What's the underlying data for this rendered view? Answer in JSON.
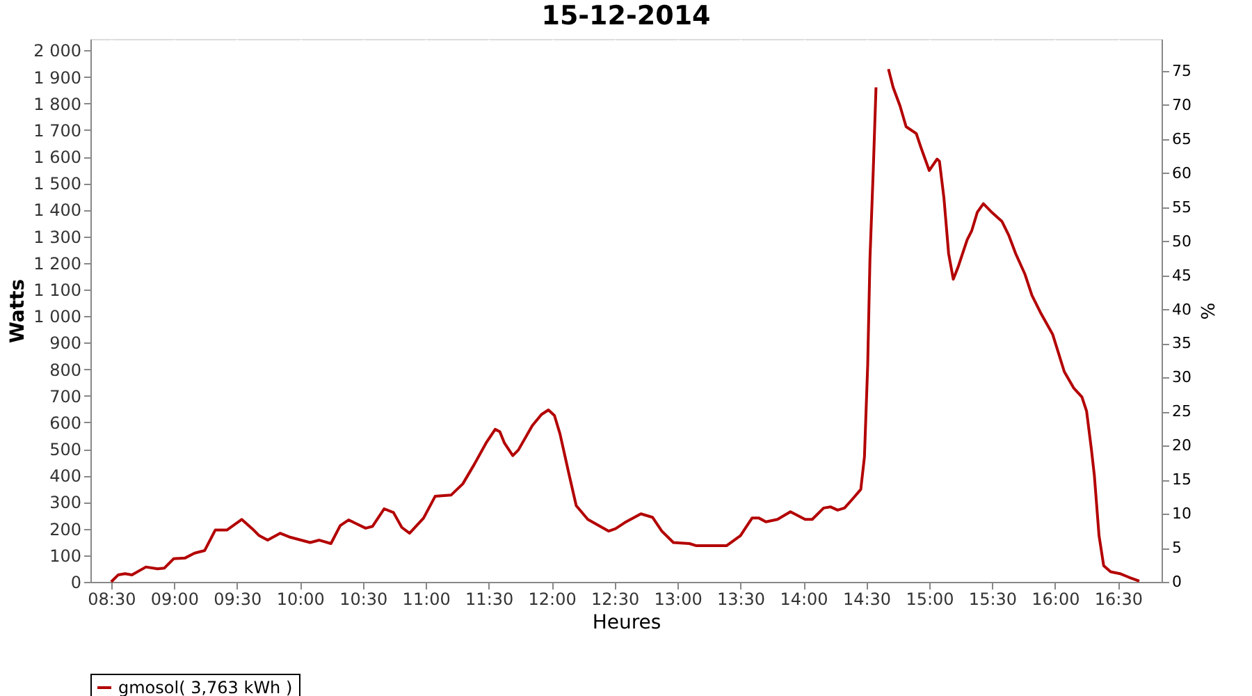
{
  "chart_data": {
    "type": "line",
    "title": "15-12-2014",
    "xlabel": "Heures",
    "ylabel": "Watts",
    "y2label": "%",
    "x": [
      8.5,
      8.555,
      8.61,
      8.665,
      8.776,
      8.868,
      8.923,
      8.996,
      9.088,
      9.162,
      9.243,
      9.327,
      9.419,
      9.537,
      9.621,
      9.676,
      9.743,
      9.842,
      9.915,
      10.081,
      10.154,
      10.246,
      10.32,
      10.386,
      10.522,
      10.577,
      10.669,
      10.743,
      10.809,
      10.871,
      10.982,
      11.074,
      11.202,
      11.294,
      11.386,
      11.478,
      11.551,
      11.588,
      11.625,
      11.691,
      11.735,
      11.846,
      11.919,
      11.974,
      12.022,
      12.066,
      12.14,
      12.195,
      12.287,
      12.452,
      12.507,
      12.581,
      12.709,
      12.801,
      12.875,
      12.967,
      13.095,
      13.15,
      13.389,
      13.5,
      13.592,
      13.647,
      13.702,
      13.794,
      13.897,
      14.014,
      14.07,
      14.161,
      14.217,
      14.272,
      14.327,
      14.4,
      14.456,
      14.485,
      14.511,
      14.529,
      14.555,
      14.577,
      14.595,
      14.639,
      14.676,
      14.713,
      14.768,
      14.816,
      14.897,
      14.934,
      15.0,
      15.062,
      15.081,
      15.117,
      15.154,
      15.191,
      15.228,
      15.301,
      15.338,
      15.382,
      15.43,
      15.503,
      15.577,
      15.632,
      15.687,
      15.761,
      15.816,
      15.889,
      15.981,
      16.073,
      16.147,
      16.213,
      16.25,
      16.287,
      16.312,
      16.349,
      16.386,
      16.441,
      16.515,
      16.588,
      16.669
    ],
    "series": [
      {
        "name": "gmosol( 3,763 kWh )",
        "color": "#b30000",
        "values": [
          0,
          26,
          31,
          26,
          56,
          49,
          52,
          87,
          90,
          108,
          118,
          195,
          195,
          235,
          200,
          174,
          157,
          183,
          169,
          148,
          157,
          144,
          212,
          233,
          202,
          209,
          275,
          261,
          205,
          183,
          240,
          322,
          327,
          369,
          443,
          522,
          574,
          565,
          522,
          475,
          496,
          588,
          630,
          647,
          626,
          557,
          400,
          287,
          235,
          191,
          200,
          223,
          256,
          243,
          191,
          148,
          144,
          136,
          136,
          174,
          240,
          240,
          226,
          235,
          264,
          235,
          235,
          278,
          282,
          270,
          278,
          317,
          348,
          470,
          817,
          1217,
          1548,
          1861,
          null,
          null,
          1930,
          1861,
          1791,
          1713,
          1687,
          1635,
          1548,
          1591,
          1583,
          1443,
          1235,
          1139,
          1183,
          1287,
          1322,
          1391,
          1423,
          1388,
          1357,
          1304,
          1235,
          1157,
          1078,
          1009,
          931,
          791,
          730,
          696,
          643,
          504,
          400,
          174,
          61,
          38,
          31,
          17,
          3
        ]
      }
    ],
    "xlim": [
      8.335,
      16.846
    ],
    "xticks": [
      {
        "value": 8.5,
        "label": "08:30"
      },
      {
        "value": 9,
        "label": "09:00"
      },
      {
        "value": 9.5,
        "label": "09:30"
      },
      {
        "value": 10,
        "label": "10:00"
      },
      {
        "value": 10.5,
        "label": "10:30"
      },
      {
        "value": 11,
        "label": "11:00"
      },
      {
        "value": 11.5,
        "label": "11:30"
      },
      {
        "value": 12,
        "label": "12:00"
      },
      {
        "value": 12.5,
        "label": "12:30"
      },
      {
        "value": 13,
        "label": "13:00"
      },
      {
        "value": 13.5,
        "label": "13:30"
      },
      {
        "value": 14,
        "label": "14:00"
      },
      {
        "value": 14.5,
        "label": "14:30"
      },
      {
        "value": 15,
        "label": "15:00"
      },
      {
        "value": 15.5,
        "label": "15:30"
      },
      {
        "value": 16,
        "label": "16:00"
      },
      {
        "value": 16.5,
        "label": "16:30"
      }
    ],
    "ylim": [
      0,
      2043
    ],
    "yticks": [
      0,
      100,
      200,
      300,
      400,
      500,
      600,
      700,
      800,
      900,
      {
        "value": 1000,
        "label": "1 000"
      },
      {
        "value": 1100,
        "label": "1 100"
      },
      {
        "value": 1200,
        "label": "1 200"
      },
      {
        "value": 1300,
        "label": "1 300"
      },
      {
        "value": 1400,
        "label": "1 400"
      },
      {
        "value": 1500,
        "label": "1 500"
      },
      {
        "value": 1600,
        "label": "1 600"
      },
      {
        "value": 1700,
        "label": "1 700"
      },
      {
        "value": 1800,
        "label": "1 800"
      },
      {
        "value": 1900,
        "label": "1 900"
      },
      {
        "value": 2000,
        "label": "2 000"
      }
    ],
    "y2lim": [
      0,
      79.7
    ],
    "y2ticks": [
      0,
      5,
      10,
      15,
      20,
      25,
      30,
      35,
      40,
      45,
      50,
      55,
      60,
      65,
      70,
      75
    ],
    "grid": true,
    "legend": "bottom",
    "marker": "none",
    "line_style": "solid"
  }
}
